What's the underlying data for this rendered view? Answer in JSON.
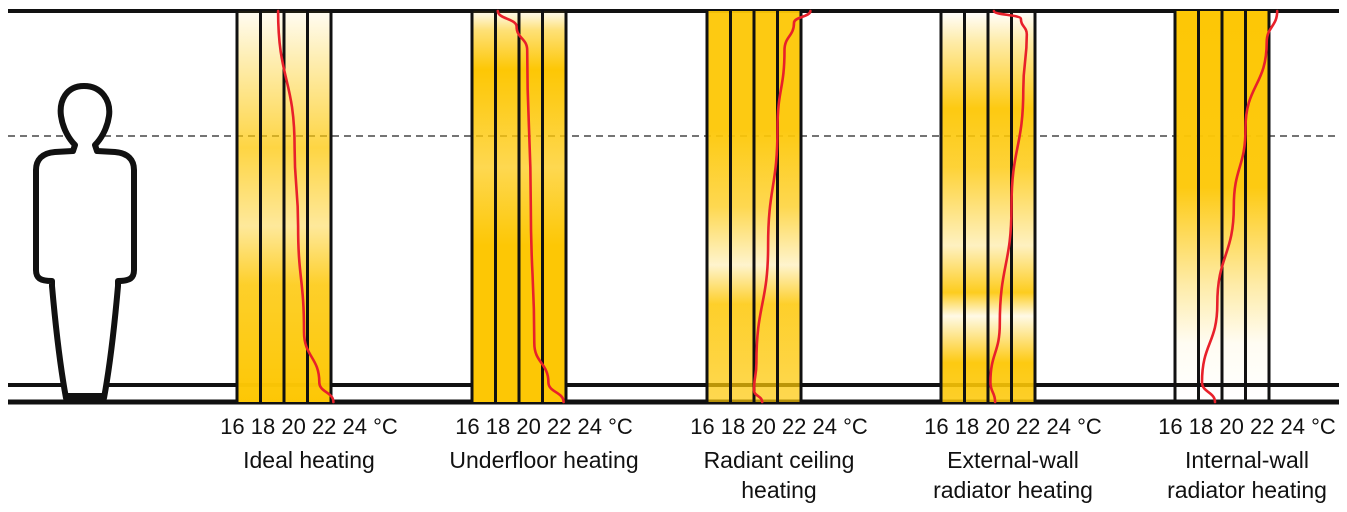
{
  "colors": {
    "gold": "#FDC705",
    "curve": "#E8202A",
    "frame": "#111111"
  },
  "person_icon": "standing-person-silhouette",
  "scale_ticks": [
    "16",
    "18",
    "20",
    "22",
    "24"
  ],
  "scale_unit": "°C",
  "panels": [
    {
      "id": "ideal",
      "caption_lines": [
        "Ideal heating"
      ],
      "scale_text": "16 18 20 22 24 °C",
      "profile": [
        [
          0,
          19.5
        ],
        [
          0.35,
          20.9
        ],
        [
          0.55,
          21.2
        ],
        [
          0.82,
          21.7
        ],
        [
          0.95,
          23.0
        ],
        [
          1,
          24.2
        ]
      ]
    },
    {
      "id": "underfloor",
      "caption_lines": [
        "Underfloor heating"
      ],
      "scale_text": "16 18 20 22 24 °C",
      "profile": [
        [
          0,
          18.2
        ],
        [
          0.04,
          19.8
        ],
        [
          0.1,
          20.7
        ],
        [
          0.5,
          21.0
        ],
        [
          0.85,
          21.3
        ],
        [
          0.95,
          22.5
        ],
        [
          1,
          23.8
        ]
      ]
    },
    {
      "id": "radiant-ceiling",
      "caption_lines": [
        "Radiant ceiling",
        "heating"
      ],
      "scale_text": "16 18 20 22 24 °C",
      "profile": [
        [
          0,
          24.8
        ],
        [
          0.03,
          23.4
        ],
        [
          0.1,
          22.6
        ],
        [
          0.3,
          22.0
        ],
        [
          0.6,
          21.2
        ],
        [
          0.9,
          20.2
        ],
        [
          0.97,
          20.0
        ],
        [
          1,
          20.7
        ]
      ]
    },
    {
      "id": "external-wall-radiator",
      "caption_lines": [
        "External-wall",
        "radiator heating"
      ],
      "scale_text": "16 18 20 22 24 °C",
      "profile": [
        [
          0,
          20.5
        ],
        [
          0.02,
          22.8
        ],
        [
          0.06,
          23.3
        ],
        [
          0.2,
          23.0
        ],
        [
          0.5,
          22.0
        ],
        [
          0.8,
          21.0
        ],
        [
          0.95,
          20.2
        ],
        [
          1,
          20.6
        ]
      ]
    },
    {
      "id": "internal-wall-radiator",
      "caption_lines": [
        "Internal-wall",
        "radiator heating"
      ],
      "scale_text": "16 18 20 22 24 °C",
      "profile": [
        [
          0,
          24.7
        ],
        [
          0.08,
          23.8
        ],
        [
          0.3,
          22.0
        ],
        [
          0.5,
          21.0
        ],
        [
          0.75,
          19.6
        ],
        [
          0.95,
          18.3
        ],
        [
          1,
          19.4
        ]
      ]
    }
  ]
}
